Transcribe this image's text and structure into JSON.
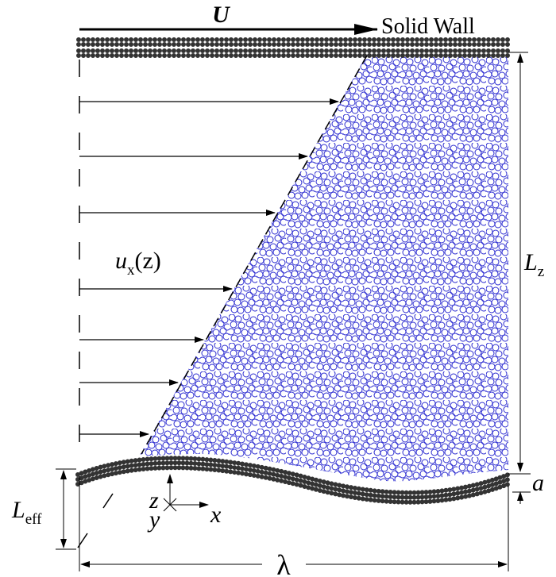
{
  "labels": {
    "velocity": "U",
    "wall": "Solid Wall",
    "profile": {
      "main": "u",
      "sub": "x",
      "arg": "(z)"
    },
    "height": {
      "main": "L",
      "sub": "z"
    },
    "amplitude": "a",
    "effective": {
      "main": "L",
      "sub": "eff"
    },
    "axes": {
      "z": "z",
      "y": "y",
      "x": "x"
    },
    "wavelength": "λ"
  }
}
